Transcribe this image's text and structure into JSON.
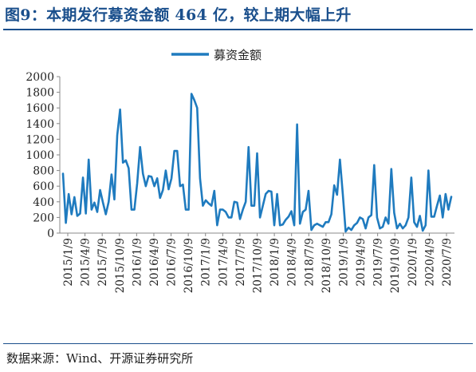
{
  "title": "图9：本期发行募资金额 464 亿，较上期大幅上升",
  "source": "数据来源：Wind、开源证券研究所",
  "colors": {
    "accent": "#1a4f8c",
    "series": "#1f7bbf"
  },
  "chart_data": {
    "type": "line",
    "ylim": [
      0,
      2000
    ],
    "yticks": [
      0,
      200,
      400,
      600,
      800,
      1000,
      1200,
      1400,
      1600,
      1800,
      2000
    ],
    "xticks": [
      "2015/1/9",
      "2015/4/9",
      "2015/7/9",
      "2015/10/9",
      "2016/1/9",
      "2016/4/9",
      "2016/7/9",
      "2016/10/9",
      "2017/1/9",
      "2017/4/9",
      "2017/7/9",
      "2017/10/9",
      "2018/1/9",
      "2018/4/9",
      "2018/7/9",
      "2018/10/9",
      "2019/1/9",
      "2019/4/9",
      "2019/7/9",
      "2019/10/9",
      "2020/1/9",
      "2020/4/9",
      "2020/7/9"
    ],
    "legend_position": "top-center",
    "grid": false,
    "series": [
      {
        "name": "募资金额",
        "values": [
          760,
          130,
          500,
          240,
          460,
          220,
          250,
          710,
          250,
          940,
          300,
          390,
          270,
          550,
          390,
          240,
          400,
          750,
          430,
          1250,
          1580,
          900,
          930,
          830,
          300,
          300,
          640,
          1100,
          760,
          600,
          730,
          720,
          600,
          700,
          450,
          550,
          800,
          560,
          700,
          1050,
          1050,
          600,
          620,
          300,
          300,
          1780,
          1700,
          1600,
          700,
          350,
          420,
          380,
          350,
          540,
          100,
          300,
          300,
          270,
          200,
          200,
          400,
          390,
          180,
          300,
          400,
          1100,
          350,
          350,
          1020,
          200,
          350,
          500,
          540,
          530,
          100,
          500,
          100,
          110,
          170,
          210,
          280,
          100,
          1390,
          120,
          270,
          300,
          540,
          40,
          100,
          120,
          100,
          80,
          140,
          140,
          240,
          610,
          490,
          940,
          500,
          20,
          70,
          40,
          100,
          130,
          200,
          180,
          60,
          200,
          230,
          870,
          200,
          60,
          80,
          200,
          120,
          820,
          260,
          60,
          120,
          60,
          100,
          200,
          710,
          140,
          80,
          220,
          30,
          100,
          800,
          210,
          210,
          350,
          480,
          200,
          500,
          300,
          464
        ]
      }
    ]
  }
}
